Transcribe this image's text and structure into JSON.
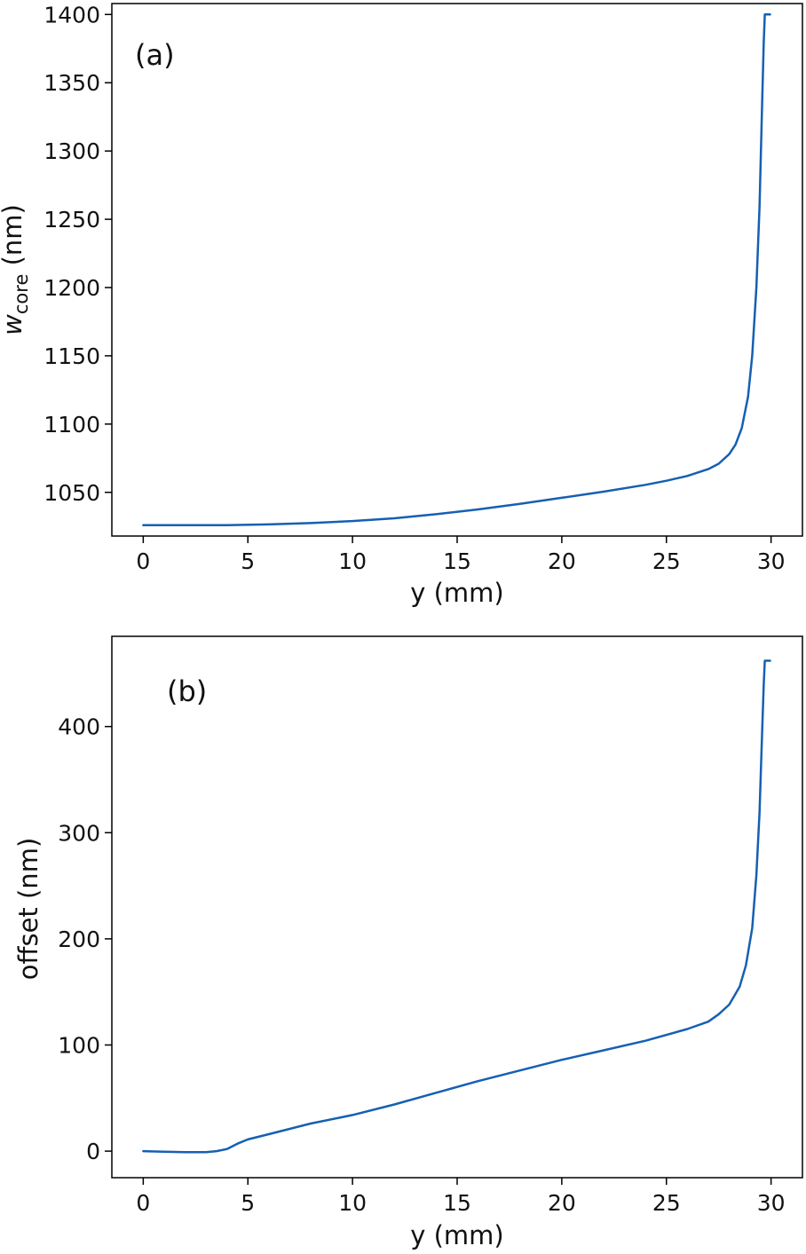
{
  "figure": {
    "line_color": "#1560b3"
  },
  "chart_data": [
    {
      "type": "line",
      "panel_label": "(a)",
      "xlabel": "y (mm)",
      "ylabel_main": "w",
      "ylabel_sub": "core",
      "ylabel_unit": " (nm)",
      "xlim": [
        -1.5,
        31.5
      ],
      "ylim": [
        1018,
        1408
      ],
      "xticks": [
        0,
        5,
        10,
        15,
        20,
        25,
        30
      ],
      "yticks": [
        1050,
        1100,
        1150,
        1200,
        1250,
        1300,
        1350,
        1400
      ],
      "grid": false,
      "series": [
        {
          "x": [
            0,
            2,
            4,
            6,
            8,
            10,
            12,
            14,
            16,
            18,
            20,
            22,
            24,
            25,
            26,
            27,
            27.5,
            28,
            28.3,
            28.6,
            28.9,
            29.1,
            29.3,
            29.45,
            29.55,
            29.65,
            29.7,
            29.8,
            29.95
          ],
          "y": [
            1026,
            1026,
            1026,
            1026.5,
            1027.5,
            1029,
            1031,
            1034,
            1037.5,
            1041.5,
            1046,
            1050.5,
            1055.5,
            1058.5,
            1062,
            1067,
            1071,
            1078,
            1085,
            1097,
            1120,
            1150,
            1200,
            1260,
            1320,
            1380,
            1400,
            1400,
            1400
          ]
        }
      ]
    },
    {
      "type": "line",
      "panel_label": "(b)",
      "xlabel": "y (mm)",
      "ylabel": "offset (nm)",
      "xlim": [
        -1.5,
        31.5
      ],
      "ylim": [
        -25,
        485
      ],
      "xticks": [
        0,
        5,
        10,
        15,
        20,
        25,
        30
      ],
      "yticks": [
        0,
        100,
        200,
        300,
        400
      ],
      "grid": false,
      "series": [
        {
          "x": [
            0,
            1,
            2,
            3,
            3.5,
            4,
            4.5,
            5,
            6,
            7,
            8,
            10,
            12,
            14,
            16,
            18,
            20,
            22,
            24,
            26,
            27,
            27.5,
            28,
            28.5,
            28.8,
            29.1,
            29.3,
            29.45,
            29.55,
            29.65,
            29.7,
            29.8,
            29.95
          ],
          "y": [
            0,
            -0.5,
            -1,
            -1,
            0,
            2,
            7,
            11,
            16,
            21,
            26,
            34,
            44,
            55,
            66,
            76,
            86,
            95,
            104,
            115,
            122,
            129,
            138,
            155,
            175,
            210,
            260,
            320,
            380,
            440,
            462,
            462,
            462
          ]
        }
      ]
    }
  ]
}
